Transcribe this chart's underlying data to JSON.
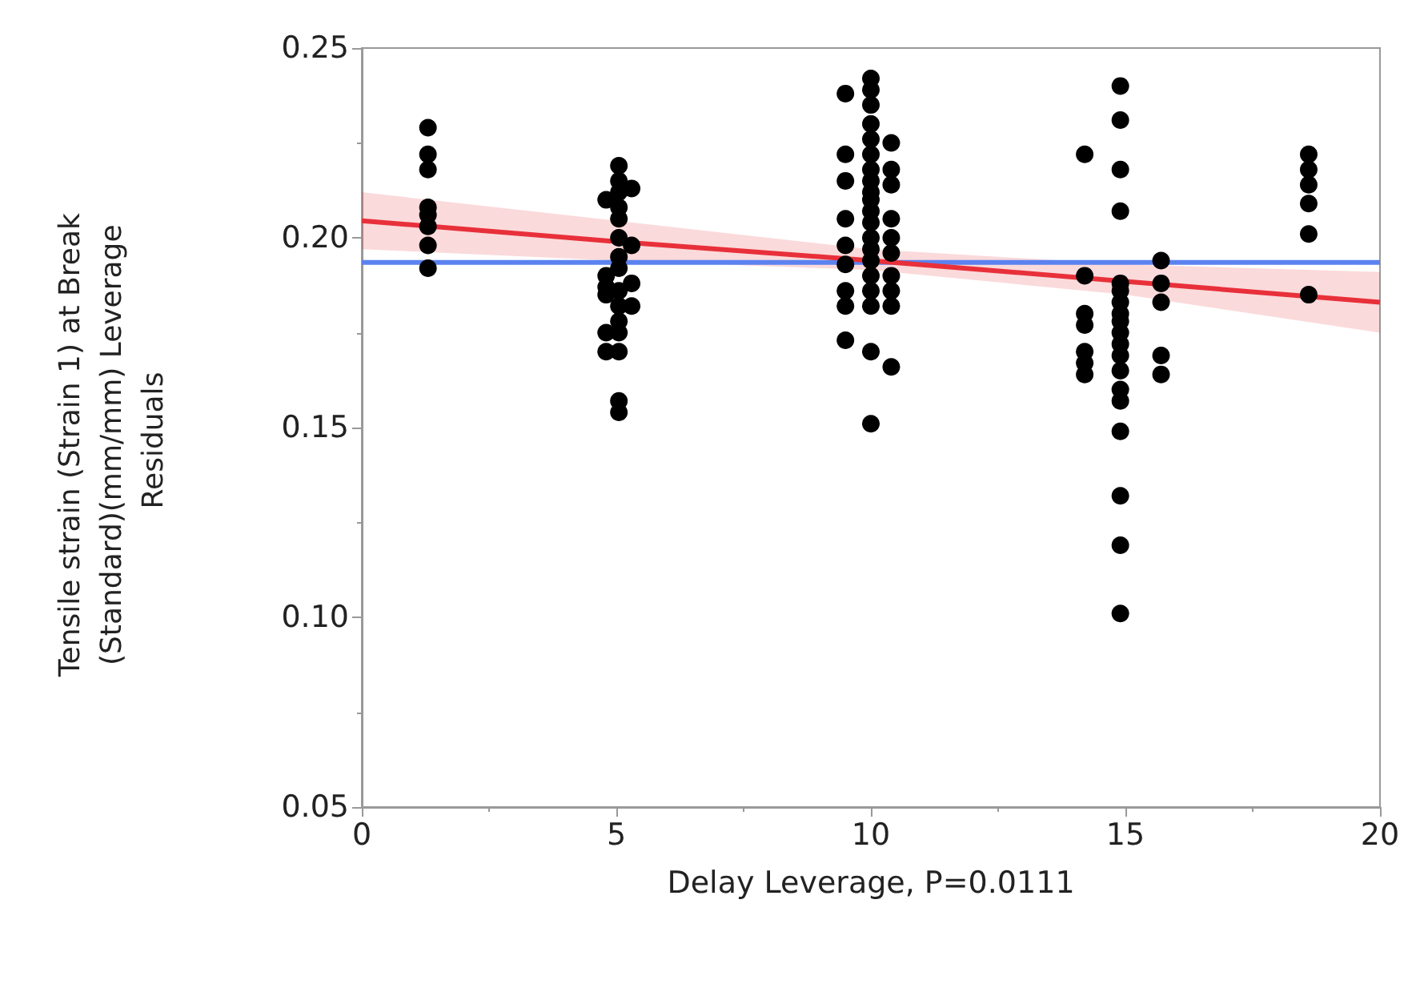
{
  "chart_data": {
    "type": "scatter",
    "xlabel": "Delay Leverage, P=0.0111",
    "ylabel": "Tensile strain (Strain 1) at Break (Standard)(mm/mm) Leverage Residuals",
    "xlim": [
      0,
      20
    ],
    "xticks": [
      0,
      5,
      10,
      15,
      20
    ],
    "ylim": [
      0.05,
      0.25
    ],
    "yticks": [
      {
        "value": 0.05,
        "label": "0.05"
      },
      {
        "value": 0.1,
        "label": "0.10"
      },
      {
        "value": 0.15,
        "label": "0.15"
      },
      {
        "value": 0.2,
        "label": "0.20"
      },
      {
        "value": 0.25,
        "label": "0.25"
      }
    ],
    "grid": false,
    "ref_lines": [
      {
        "axis": "y",
        "value": 0.1935,
        "color": "#5b82f0"
      }
    ],
    "series": [
      {
        "type": "line",
        "marker": "none",
        "color": "#e8303a",
        "x": [
          0,
          5,
          10,
          15,
          20
        ],
        "values": [
          0.2045,
          0.199,
          0.194,
          0.1885,
          0.183
        ],
        "lower": [
          0.197,
          0.194,
          0.1915,
          0.185,
          0.175
        ],
        "upper": [
          0.212,
          0.2045,
          0.197,
          0.193,
          0.191
        ]
      },
      {
        "marker": "circle",
        "color": "#000000",
        "x": [
          1.3,
          1.3,
          1.3,
          1.3,
          1.3,
          1.3,
          1.3,
          1.3,
          4.8,
          4.8,
          4.8,
          4.8,
          4.8,
          4.8,
          5.05,
          5.05,
          5.05,
          5.05,
          5.05,
          5.05,
          5.05,
          5.05,
          5.05,
          5.05,
          5.05,
          5.05,
          5.05,
          5.05,
          5.05,
          5.3,
          5.3,
          5.3,
          5.3,
          9.5,
          9.5,
          9.5,
          9.5,
          9.5,
          9.5,
          9.5,
          9.5,
          9.5,
          10,
          10,
          10,
          10,
          10,
          10,
          10,
          10,
          10,
          10,
          10,
          10,
          10,
          10,
          10,
          10,
          10,
          10,
          10,
          10,
          10.4,
          10.4,
          10.4,
          10.4,
          10.4,
          10.4,
          10.4,
          10.4,
          10.4,
          10.4,
          14.2,
          14.2,
          14.2,
          14.2,
          14.2,
          14.2,
          14.2,
          14.9,
          14.9,
          14.9,
          14.9,
          14.9,
          14.9,
          14.9,
          14.9,
          14.9,
          14.9,
          14.9,
          14.9,
          14.9,
          14.9,
          14.9,
          14.9,
          14.9,
          14.9,
          14.9,
          15.7,
          15.7,
          15.7,
          15.7,
          15.7,
          18.6,
          18.6,
          18.6,
          18.6,
          18.6,
          18.6
        ],
        "values": [
          0.229,
          0.222,
          0.218,
          0.208,
          0.206,
          0.203,
          0.198,
          0.192,
          0.21,
          0.19,
          0.187,
          0.185,
          0.175,
          0.17,
          0.219,
          0.215,
          0.212,
          0.208,
          0.205,
          0.2,
          0.195,
          0.192,
          0.186,
          0.182,
          0.178,
          0.175,
          0.17,
          0.157,
          0.154,
          0.213,
          0.198,
          0.188,
          0.182,
          0.238,
          0.222,
          0.215,
          0.205,
          0.198,
          0.193,
          0.186,
          0.182,
          0.173,
          0.242,
          0.239,
          0.235,
          0.23,
          0.226,
          0.222,
          0.218,
          0.215,
          0.212,
          0.21,
          0.207,
          0.204,
          0.2,
          0.197,
          0.194,
          0.19,
          0.186,
          0.182,
          0.17,
          0.151,
          0.225,
          0.218,
          0.214,
          0.205,
          0.2,
          0.196,
          0.19,
          0.186,
          0.182,
          0.166,
          0.222,
          0.19,
          0.18,
          0.177,
          0.17,
          0.167,
          0.164,
          0.24,
          0.231,
          0.218,
          0.207,
          0.188,
          0.186,
          0.183,
          0.18,
          0.178,
          0.175,
          0.172,
          0.169,
          0.165,
          0.16,
          0.157,
          0.149,
          0.132,
          0.119,
          0.101,
          0.194,
          0.188,
          0.183,
          0.169,
          0.164,
          0.222,
          0.218,
          0.214,
          0.209,
          0.201,
          0.185
        ]
      }
    ]
  }
}
